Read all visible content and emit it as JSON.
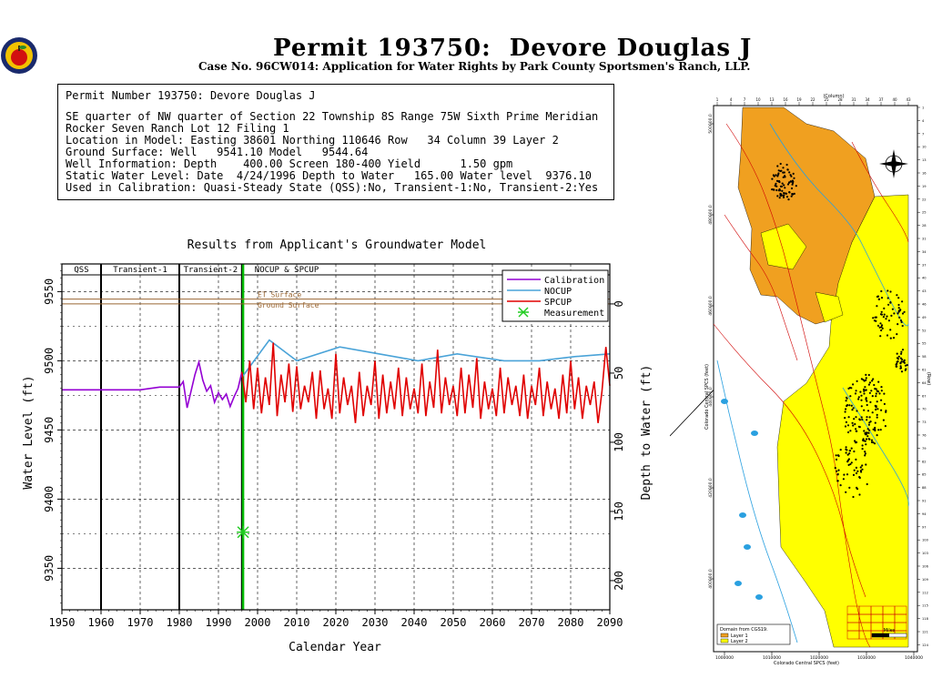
{
  "header": {
    "title": "Permit 193750:  Devore Douglas J",
    "subtitle": "Case No. 96CW014: Application for Water Rights by Park County Sportsmen's Ranch, LLP."
  },
  "info": {
    "line1": "Permit Number 193750: Devore Douglas J",
    "line2": "SE quarter of NW quarter of Section 22 Township 8S Range 75W Sixth Prime Meridian",
    "line3": "Rocker Seven Ranch Lot 12 Filing 1",
    "line4": "Location in Model: Easting 38601 Northing 110646 Row   34 Column 39 Layer 2",
    "line5": "Ground Surface: Well   9541.10 Model   9544.64",
    "line6": "Well Information: Depth    400.00 Screen 180-400 Yield      1.50 gpm",
    "line7": "Static Water Level: Date  4/24/1996 Depth to Water   165.00 Water level  9376.10",
    "line8": "Used in Calibration: Quasi-Steady State (QSS):No, Transient-1:No, Transient-2:Yes"
  },
  "colors": {
    "calibration": "#9400d3",
    "nocup": "#4aa3d8",
    "spcup": "#e00000",
    "measurement": "#22cc22",
    "surface": "#996633",
    "today_line": "#00bb00"
  },
  "chart_data": {
    "type": "line",
    "title": "Results from Applicant's Groundwater Model",
    "xlabel": "Calendar Year",
    "ylabel": "Water Level (ft)",
    "y2label": "Depth to Water (ft)",
    "xlim": [
      1950,
      2090
    ],
    "ylim": [
      9320,
      9570
    ],
    "xticks": [
      1950,
      1960,
      1970,
      1980,
      1990,
      2000,
      2010,
      2020,
      2030,
      2040,
      2050,
      2060,
      2070,
      2080,
      2090
    ],
    "yticks": [
      9350,
      9400,
      9450,
      9500,
      9550
    ],
    "y2ticks": [
      0,
      50,
      100,
      150,
      200
    ],
    "periods": [
      {
        "label": "QSS",
        "start": 1950,
        "end": 1960
      },
      {
        "label": "Transient-1",
        "start": 1960,
        "end": 1980
      },
      {
        "label": "Transient-2",
        "start": 1980,
        "end": 1996
      },
      {
        "label": "NOCUP  &  SPCUP",
        "start": 1996,
        "end": 2090
      }
    ],
    "surfaces": [
      {
        "label": "ET Surface",
        "value": 9544.6
      },
      {
        "label": "Ground Surface",
        "value": 9541.1
      }
    ],
    "legend": [
      "Calibration",
      "NOCUP",
      "SPCUP",
      "Measurement"
    ],
    "legend_position": "top-right",
    "grid": true,
    "series": [
      {
        "name": "Calibration",
        "x": [
          1950,
          1960,
          1970,
          1975,
          1980,
          1981,
          1982,
          1983,
          1984,
          1985,
          1986,
          1987,
          1988,
          1989,
          1990,
          1991,
          1992,
          1993,
          1994,
          1995,
          1996
        ],
        "y": [
          9479,
          9479,
          9479,
          9481,
          9481,
          9485,
          9466,
          9478,
          9490,
          9499,
          9486,
          9478,
          9482,
          9470,
          9477,
          9472,
          9476,
          9467,
          9474,
          9480,
          9492
        ]
      },
      {
        "name": "NOCUP",
        "x": [
          1996,
          2003,
          2010,
          2021,
          2031,
          2041,
          2051,
          2063,
          2072,
          2081,
          2090
        ],
        "y": [
          9488,
          9515,
          9500,
          9510,
          9505,
          9500,
          9505,
          9500,
          9500,
          9503,
          9505
        ]
      },
      {
        "name": "SPCUP",
        "x": [
          1996,
          1997,
          1998,
          1999,
          2000,
          2001,
          2002,
          2003,
          2004,
          2005,
          2006,
          2007,
          2008,
          2009,
          2010,
          2011,
          2012,
          2013,
          2014,
          2015,
          2016,
          2017,
          2018,
          2019,
          2020,
          2021,
          2022,
          2023,
          2024,
          2025,
          2026,
          2027,
          2028,
          2029,
          2030,
          2031,
          2032,
          2033,
          2034,
          2035,
          2036,
          2037,
          2038,
          2039,
          2040,
          2041,
          2042,
          2043,
          2044,
          2045,
          2046,
          2047,
          2048,
          2049,
          2050,
          2051,
          2052,
          2053,
          2054,
          2055,
          2056,
          2057,
          2058,
          2059,
          2060,
          2061,
          2062,
          2063,
          2064,
          2065,
          2066,
          2067,
          2068,
          2069,
          2070,
          2071,
          2072,
          2073,
          2074,
          2075,
          2076,
          2077,
          2078,
          2079,
          2080,
          2081,
          2082,
          2083,
          2084,
          2085,
          2086,
          2087,
          2088,
          2089,
          2090
        ],
        "y": [
          9492,
          9470,
          9500,
          9465,
          9495,
          9462,
          9488,
          9468,
          9513,
          9460,
          9490,
          9470,
          9498,
          9463,
          9496,
          9465,
          9482,
          9470,
          9492,
          9458,
          9493,
          9465,
          9480,
          9458,
          9505,
          9462,
          9488,
          9468,
          9482,
          9455,
          9492,
          9460,
          9482,
          9468,
          9500,
          9458,
          9490,
          9462,
          9485,
          9465,
          9495,
          9460,
          9488,
          9465,
          9480,
          9462,
          9498,
          9460,
          9485,
          9466,
          9508,
          9462,
          9488,
          9468,
          9482,
          9460,
          9495,
          9462,
          9490,
          9466,
          9502,
          9458,
          9485,
          9465,
          9480,
          9460,
          9495,
          9462,
          9488,
          9468,
          9482,
          9460,
          9490,
          9458,
          9482,
          9468,
          9495,
          9460,
          9485,
          9465,
          9480,
          9458,
          9490,
          9462,
          9500,
          9465,
          9488,
          9458,
          9482,
          9468,
          9485,
          9455,
          9478,
          9510,
          9482
        ]
      }
    ],
    "measurement": {
      "x": 1996.3,
      "y": 9376.1
    }
  },
  "map": {
    "top_label": "(Column)",
    "right_label": "(Row)",
    "left_label": "Colorado Central SPCS (feet)",
    "bottom_label": "Colorado Central SPCS (feet)",
    "left_ticks": [
      "500000.0",
      "480000.0",
      "460000.0",
      "440000.0",
      "420000.0",
      "400000.0"
    ],
    "bottom_ticks": [
      "1000000",
      "1010000",
      "1020000",
      "1030000",
      "1040000"
    ],
    "legend_title": "Domain from CGS19.",
    "legend_items": [
      "Layer 1",
      "Layer 2"
    ],
    "scale_label": "Miles"
  }
}
